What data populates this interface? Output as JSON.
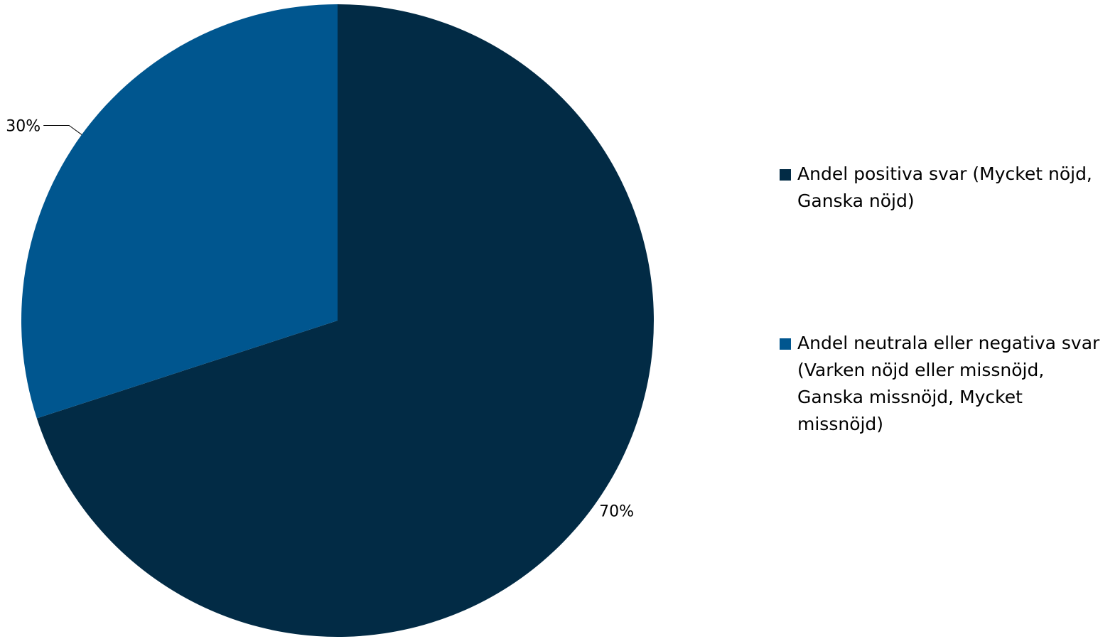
{
  "chart_data": {
    "type": "pie",
    "start_angle_deg": 0,
    "direction": "clockwise",
    "slices": [
      {
        "label": "Andel positiva svar (Mycket nöjd, Ganska nöjd)",
        "value": 70,
        "display": "70%",
        "color": "#022b45"
      },
      {
        "label": "Andel neutrala eller negativa svar (Varken nöjd eller missnöjd, Ganska missnöjd, Mycket missnöjd)",
        "value": 30,
        "display": "30%",
        "color": "#00568f"
      }
    ],
    "legend_position": "right",
    "title": ""
  }
}
